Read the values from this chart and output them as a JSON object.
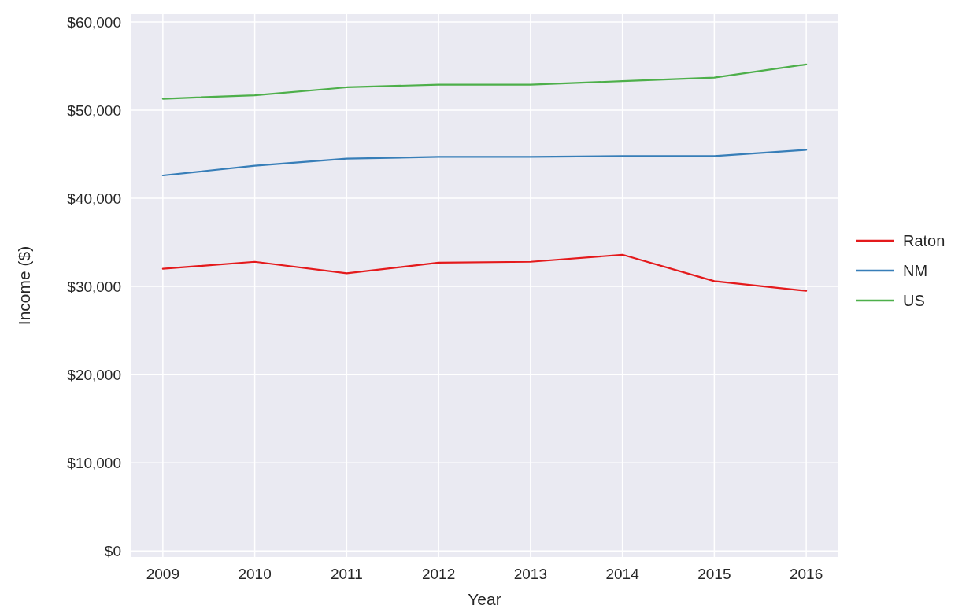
{
  "chart_data": {
    "type": "line",
    "xlabel": "Year",
    "ylabel": "Income ($)",
    "x": [
      2009,
      2010,
      2011,
      2012,
      2013,
      2014,
      2015,
      2016
    ],
    "xlim": [
      2008.65,
      2016.35
    ],
    "xticks": [
      2009,
      2010,
      2011,
      2012,
      2013,
      2014,
      2015,
      2016
    ],
    "ylim": [
      -700,
      60900
    ],
    "yticks": [
      {
        "value": 0,
        "label": "$0"
      },
      {
        "value": 10000,
        "label": "$10,000"
      },
      {
        "value": 20000,
        "label": "$20,000"
      },
      {
        "value": 30000,
        "label": "$30,000"
      },
      {
        "value": 40000,
        "label": "$40,000"
      },
      {
        "value": 50000,
        "label": "$50,000"
      },
      {
        "value": 60000,
        "label": "$60,000"
      }
    ],
    "grid": true,
    "legend": "right",
    "marker": "none",
    "line_style": "solid",
    "series": [
      {
        "name": "Raton",
        "color": "#e41a1c",
        "values": [
          32000,
          32800,
          31500,
          32700,
          32800,
          33600,
          30600,
          29500
        ]
      },
      {
        "name": "NM",
        "color": "#377eb8",
        "values": [
          42600,
          43700,
          44500,
          44700,
          44700,
          44800,
          44800,
          45500
        ]
      },
      {
        "name": "US",
        "color": "#4daf4a",
        "values": [
          51300,
          51700,
          52600,
          52900,
          52900,
          53300,
          53700,
          55200
        ]
      }
    ]
  }
}
